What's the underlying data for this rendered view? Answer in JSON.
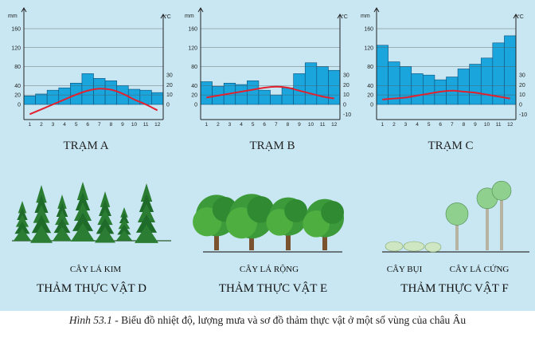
{
  "chart_data": [
    {
      "type": "bar+line",
      "title": "TRẠM A",
      "x": [
        1,
        2,
        3,
        4,
        5,
        6,
        7,
        8,
        9,
        10,
        11,
        12
      ],
      "precip_unit": "mm",
      "temp_unit": "°C",
      "precip_ticks": [
        0,
        20,
        40,
        80,
        120,
        160
      ],
      "temp_ticks": [
        0,
        10,
        20,
        30
      ],
      "precip_mm": [
        18,
        22,
        30,
        35,
        45,
        65,
        55,
        50,
        40,
        32,
        30,
        25
      ],
      "temp_c": [
        -10,
        -5,
        0,
        5,
        10,
        14,
        16,
        15,
        11,
        5,
        0,
        -6
      ]
    },
    {
      "type": "bar+line",
      "title": "TRẠM B",
      "x": [
        1,
        2,
        3,
        4,
        5,
        6,
        7,
        8,
        9,
        10,
        11,
        12
      ],
      "precip_unit": "mm",
      "temp_unit": "°C",
      "precip_ticks": [
        0,
        20,
        40,
        80,
        120,
        160
      ],
      "temp_ticks": [
        -10,
        0,
        10,
        20,
        30
      ],
      "precip_mm": [
        48,
        38,
        45,
        42,
        50,
        30,
        20,
        35,
        65,
        88,
        80,
        72
      ],
      "temp_c": [
        7,
        9,
        11,
        13,
        15,
        17,
        18,
        17,
        14,
        11,
        8,
        6
      ]
    },
    {
      "type": "bar+line",
      "title": "TRẠM C",
      "x": [
        1,
        2,
        3,
        4,
        5,
        6,
        7,
        8,
        9,
        10,
        11,
        12
      ],
      "precip_unit": "mm",
      "temp_unit": "°C",
      "precip_ticks": [
        0,
        20,
        40,
        80,
        120,
        160
      ],
      "temp_ticks": [
        -10,
        0,
        10,
        20,
        30
      ],
      "precip_mm": [
        125,
        90,
        80,
        65,
        62,
        52,
        58,
        75,
        85,
        98,
        130,
        145
      ],
      "temp_c": [
        5,
        6,
        7,
        9,
        11,
        13,
        14,
        13,
        12,
        10,
        8,
        6
      ]
    }
  ],
  "vegetation": [
    {
      "plant_label": "CÂY LÁ KIM",
      "title": "THẢM THỰC VẬT D"
    },
    {
      "plant_label": "CÂY LÁ RỘNG",
      "title": "THẢM THỰC VẬT  E"
    },
    {
      "plant_label": "CÂY BỤI",
      "plant_label2": "CÂY LÁ CỨNG",
      "title": "THẢM THỰC VẬT F"
    }
  ],
  "caption": {
    "figure": "Hình 53.1",
    "text": " - Biểu đồ nhiệt độ, lượng mưa và sơ đồ thảm thực vật ở một số vùng của châu Âu"
  },
  "colors": {
    "bar": "#1aa5dd",
    "bar_stroke": "#0b4f7a",
    "temp_line": "#e2202e",
    "background": "#c8e7f2",
    "tree_dark": "#1f6b2a",
    "tree_mid": "#3c9a3a",
    "tree_light": "#8dd05a"
  }
}
